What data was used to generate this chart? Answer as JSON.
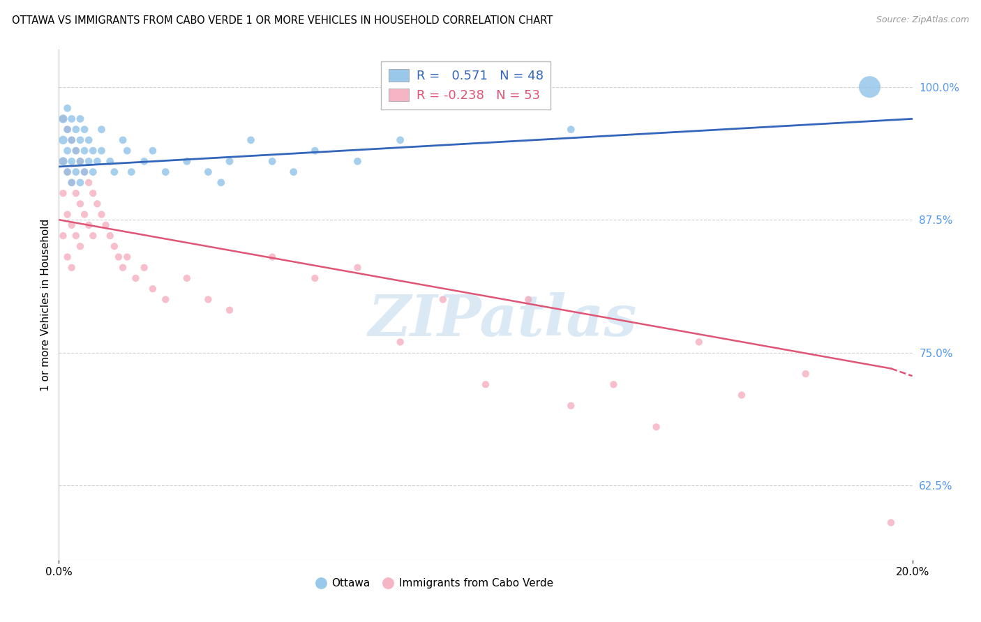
{
  "title": "OTTAWA VS IMMIGRANTS FROM CABO VERDE 1 OR MORE VEHICLES IN HOUSEHOLD CORRELATION CHART",
  "source": "Source: ZipAtlas.com",
  "ylabel": "1 or more Vehicles in Household",
  "ytick_labels": [
    "100.0%",
    "87.5%",
    "75.0%",
    "62.5%"
  ],
  "ytick_values": [
    1.0,
    0.875,
    0.75,
    0.625
  ],
  "legend_ottawa": "Ottawa",
  "legend_cabo": "Immigrants from Cabo Verde",
  "R_ottawa": 0.571,
  "N_ottawa": 48,
  "R_cabo": -0.238,
  "N_cabo": 53,
  "watermark_text": "ZIPatlas",
  "watermark_color": "#b8d4ed",
  "background_color": "#ffffff",
  "blue_color": "#89bfe8",
  "pink_color": "#f5a8bb",
  "trendline_blue": "#3366bb",
  "trendline_pink": "#e05575",
  "grid_color": "#cccccc",
  "yaxis_label_color": "#5599ee",
  "xlim": [
    0.0,
    0.2
  ],
  "ylim": [
    0.555,
    1.035
  ],
  "ottawa_x": [
    0.001,
    0.001,
    0.001,
    0.002,
    0.002,
    0.002,
    0.002,
    0.003,
    0.003,
    0.003,
    0.003,
    0.004,
    0.004,
    0.004,
    0.005,
    0.005,
    0.005,
    0.005,
    0.006,
    0.006,
    0.006,
    0.007,
    0.007,
    0.008,
    0.008,
    0.009,
    0.01,
    0.01,
    0.012,
    0.013,
    0.015,
    0.016,
    0.017,
    0.02,
    0.022,
    0.025,
    0.03,
    0.035,
    0.038,
    0.04,
    0.045,
    0.05,
    0.055,
    0.06,
    0.07,
    0.08,
    0.12,
    0.19
  ],
  "ottawa_y": [
    0.97,
    0.95,
    0.93,
    0.98,
    0.96,
    0.94,
    0.92,
    0.97,
    0.95,
    0.93,
    0.91,
    0.96,
    0.94,
    0.92,
    0.97,
    0.95,
    0.93,
    0.91,
    0.96,
    0.94,
    0.92,
    0.95,
    0.93,
    0.94,
    0.92,
    0.93,
    0.96,
    0.94,
    0.93,
    0.92,
    0.95,
    0.94,
    0.92,
    0.93,
    0.94,
    0.92,
    0.93,
    0.92,
    0.91,
    0.93,
    0.95,
    0.93,
    0.92,
    0.94,
    0.93,
    0.95,
    0.96,
    1.0
  ],
  "ottawa_sizes": [
    80,
    80,
    80,
    60,
    60,
    60,
    60,
    60,
    60,
    60,
    60,
    60,
    60,
    60,
    60,
    60,
    60,
    60,
    60,
    60,
    60,
    60,
    60,
    60,
    60,
    60,
    60,
    60,
    60,
    60,
    60,
    60,
    60,
    60,
    60,
    60,
    60,
    60,
    60,
    60,
    60,
    60,
    60,
    60,
    60,
    60,
    60,
    500
  ],
  "cabo_x": [
    0.001,
    0.001,
    0.001,
    0.001,
    0.002,
    0.002,
    0.002,
    0.002,
    0.003,
    0.003,
    0.003,
    0.003,
    0.004,
    0.004,
    0.004,
    0.005,
    0.005,
    0.005,
    0.006,
    0.006,
    0.007,
    0.007,
    0.008,
    0.008,
    0.009,
    0.01,
    0.011,
    0.012,
    0.013,
    0.014,
    0.015,
    0.016,
    0.018,
    0.02,
    0.022,
    0.025,
    0.03,
    0.035,
    0.04,
    0.05,
    0.06,
    0.07,
    0.08,
    0.09,
    0.1,
    0.11,
    0.12,
    0.13,
    0.14,
    0.15,
    0.16,
    0.175,
    0.195
  ],
  "cabo_y": [
    0.97,
    0.93,
    0.9,
    0.86,
    0.96,
    0.92,
    0.88,
    0.84,
    0.95,
    0.91,
    0.87,
    0.83,
    0.94,
    0.9,
    0.86,
    0.93,
    0.89,
    0.85,
    0.92,
    0.88,
    0.91,
    0.87,
    0.9,
    0.86,
    0.89,
    0.88,
    0.87,
    0.86,
    0.85,
    0.84,
    0.83,
    0.84,
    0.82,
    0.83,
    0.81,
    0.8,
    0.82,
    0.8,
    0.79,
    0.84,
    0.82,
    0.83,
    0.76,
    0.8,
    0.72,
    0.8,
    0.7,
    0.72,
    0.68,
    0.76,
    0.71,
    0.73,
    0.59
  ],
  "trend_blue_x0": 0.0,
  "trend_blue_y0": 0.925,
  "trend_blue_x1": 0.2,
  "trend_blue_y1": 0.97,
  "trend_pink_x0": 0.0,
  "trend_pink_y0": 0.875,
  "trend_pink_x1": 0.195,
  "trend_pink_y1": 0.735,
  "trend_pink_dash_x0": 0.195,
  "trend_pink_dash_y0": 0.735,
  "trend_pink_dash_x1": 0.2,
  "trend_pink_dash_y1": 0.728
}
